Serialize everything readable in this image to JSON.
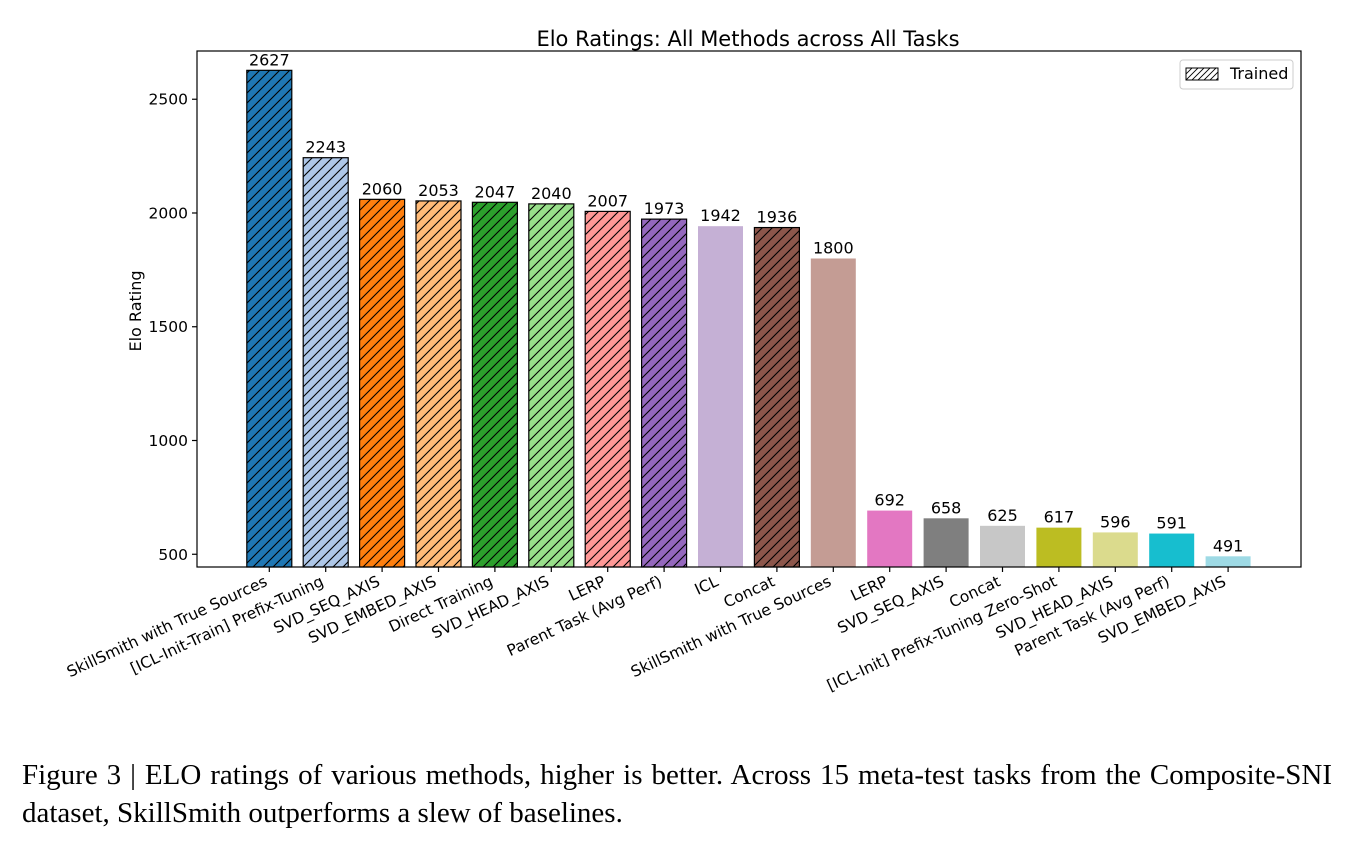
{
  "chart_data": {
    "type": "bar",
    "title": "Elo Ratings: All Methods across All Tasks",
    "xlabel": "",
    "ylabel": "Elo Rating",
    "ylim": [
      444,
      2712
    ],
    "yticks": [
      500,
      1000,
      1500,
      2000,
      2500
    ],
    "grid": false,
    "legend": {
      "position": "top-right",
      "entries": [
        {
          "label": "Trained",
          "pattern": "hatched"
        }
      ]
    },
    "categories": [
      "SkillSmith with True Sources",
      "[ICL-Init-Train] Prefix-Tuning",
      "SVD_SEQ_AXIS",
      "SVD_EMBED_AXIS",
      "Direct Training",
      "SVD_HEAD_AXIS",
      "LERP",
      "Parent Task (Avg Perf)",
      "ICL",
      "Concat",
      "SkillSmith with True Sources",
      "LERP",
      "SVD_SEQ_AXIS",
      "Concat",
      "[ICL-Init] Prefix-Tuning Zero-Shot",
      "SVD_HEAD_AXIS",
      "Parent Task (Avg Perf)",
      "SVD_EMBED_AXIS"
    ],
    "values": [
      2627,
      2243,
      2060,
      2053,
      2047,
      2040,
      2007,
      1973,
      1942,
      1936,
      1800,
      692,
      658,
      625,
      617,
      596,
      591,
      491
    ],
    "trained": [
      true,
      true,
      true,
      true,
      true,
      true,
      true,
      true,
      false,
      true,
      false,
      false,
      false,
      false,
      false,
      false,
      false,
      false
    ],
    "colors": [
      "#1f77b4",
      "#aec7e8",
      "#ff7f0e",
      "#ffbb78",
      "#2ca02c",
      "#98df8a",
      "#ff9896",
      "#9467bd",
      "#c5b0d5",
      "#8c564b",
      "#c49c94",
      "#e377c2",
      "#7f7f7f",
      "#c7c7c7",
      "#bcbd22",
      "#dbdb8d",
      "#17becf",
      "#9edae5"
    ]
  },
  "caption": "Figure 3 | ELO ratings of various methods, higher is better. Across 15 meta-test tasks from the Composite-SNI dataset, SkillSmith outperforms a slew of baselines."
}
